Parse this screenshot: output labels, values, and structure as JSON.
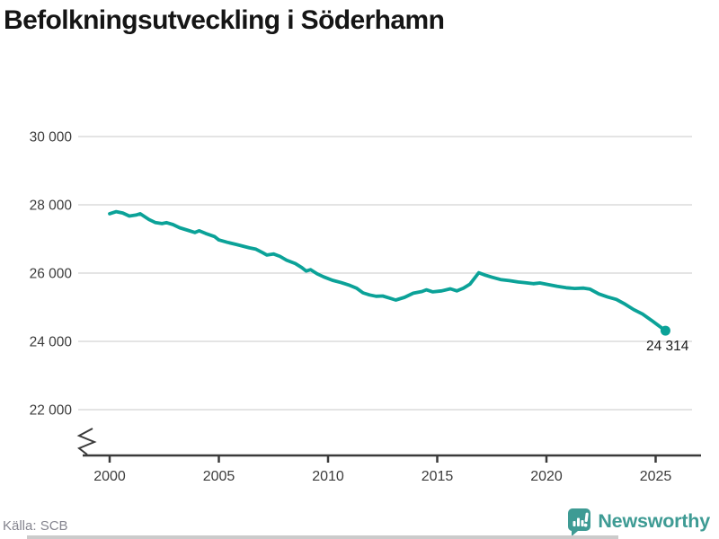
{
  "title": "Befolkningsutveckling i Söderhamn",
  "source": "Källa: SCB",
  "branding": {
    "name": "Newsworthy",
    "icon": "bar-chart-speech-bubble-icon",
    "color": "#3e9b94"
  },
  "colors": {
    "line": "#0ba298",
    "grid": "#dcdcdc",
    "axis": "#3a3a3a",
    "tick_label": "#3c3c3c",
    "title": "#151515",
    "source": "#85858f",
    "end_dot": "#0ba298"
  },
  "chart_data": {
    "type": "line",
    "title": "Befolkningsutveckling i Söderhamn",
    "xlabel": "",
    "ylabel": "",
    "x_ticks": [
      {
        "label": "2000",
        "value": 2000
      },
      {
        "label": "2005",
        "value": 2005
      },
      {
        "label": "2010",
        "value": 2010
      },
      {
        "label": "2015",
        "value": 2015
      },
      {
        "label": "2020",
        "value": 2020
      },
      {
        "label": "2025",
        "value": 2025
      }
    ],
    "y_ticks": [
      {
        "label": "30 000",
        "value": 30000
      },
      {
        "label": "28 000",
        "value": 28000
      },
      {
        "label": "26 000",
        "value": 26000
      },
      {
        "label": "24 000",
        "value": 24000
      },
      {
        "label": "22 000",
        "value": 22000
      }
    ],
    "xlim": [
      1998.8,
      2027
    ],
    "ylim": [
      21300,
      30600
    ],
    "grid": "horizontal",
    "axis_break": true,
    "legend": "none",
    "end_label": "24 314",
    "end_value": 24314,
    "series": [
      {
        "name": "Befolkning Söderhamn",
        "points": [
          [
            2000.0,
            27740
          ],
          [
            2000.3,
            27800
          ],
          [
            2000.6,
            27760
          ],
          [
            2000.9,
            27670
          ],
          [
            2001.2,
            27700
          ],
          [
            2001.4,
            27740
          ],
          [
            2001.8,
            27570
          ],
          [
            2002.1,
            27480
          ],
          [
            2002.4,
            27450
          ],
          [
            2002.6,
            27480
          ],
          [
            2002.9,
            27420
          ],
          [
            2003.2,
            27330
          ],
          [
            2003.6,
            27250
          ],
          [
            2003.9,
            27190
          ],
          [
            2004.1,
            27240
          ],
          [
            2004.4,
            27160
          ],
          [
            2004.8,
            27070
          ],
          [
            2005.0,
            26970
          ],
          [
            2005.4,
            26900
          ],
          [
            2005.8,
            26840
          ],
          [
            2006.1,
            26790
          ],
          [
            2006.4,
            26740
          ],
          [
            2006.7,
            26700
          ],
          [
            2007.0,
            26600
          ],
          [
            2007.2,
            26530
          ],
          [
            2007.5,
            26560
          ],
          [
            2007.8,
            26490
          ],
          [
            2008.1,
            26380
          ],
          [
            2008.5,
            26280
          ],
          [
            2008.8,
            26160
          ],
          [
            2009.0,
            26060
          ],
          [
            2009.2,
            26100
          ],
          [
            2009.5,
            25980
          ],
          [
            2009.8,
            25890
          ],
          [
            2010.2,
            25790
          ],
          [
            2010.6,
            25720
          ],
          [
            2011.0,
            25640
          ],
          [
            2011.3,
            25560
          ],
          [
            2011.6,
            25420
          ],
          [
            2011.9,
            25360
          ],
          [
            2012.2,
            25320
          ],
          [
            2012.5,
            25330
          ],
          [
            2012.8,
            25270
          ],
          [
            2013.1,
            25210
          ],
          [
            2013.5,
            25290
          ],
          [
            2013.9,
            25410
          ],
          [
            2014.3,
            25460
          ],
          [
            2014.5,
            25510
          ],
          [
            2014.8,
            25450
          ],
          [
            2015.2,
            25480
          ],
          [
            2015.6,
            25540
          ],
          [
            2015.9,
            25480
          ],
          [
            2016.2,
            25560
          ],
          [
            2016.5,
            25680
          ],
          [
            2016.9,
            26010
          ],
          [
            2017.2,
            25940
          ],
          [
            2017.5,
            25880
          ],
          [
            2017.9,
            25810
          ],
          [
            2018.3,
            25780
          ],
          [
            2018.7,
            25740
          ],
          [
            2019.0,
            25720
          ],
          [
            2019.4,
            25690
          ],
          [
            2019.7,
            25710
          ],
          [
            2020.1,
            25660
          ],
          [
            2020.5,
            25610
          ],
          [
            2020.9,
            25570
          ],
          [
            2021.3,
            25550
          ],
          [
            2021.7,
            25560
          ],
          [
            2022.0,
            25530
          ],
          [
            2022.4,
            25390
          ],
          [
            2022.8,
            25300
          ],
          [
            2023.2,
            25230
          ],
          [
            2023.6,
            25090
          ],
          [
            2024.0,
            24930
          ],
          [
            2024.4,
            24800
          ],
          [
            2024.8,
            24620
          ],
          [
            2025.1,
            24480
          ],
          [
            2025.45,
            24314
          ]
        ]
      }
    ]
  }
}
